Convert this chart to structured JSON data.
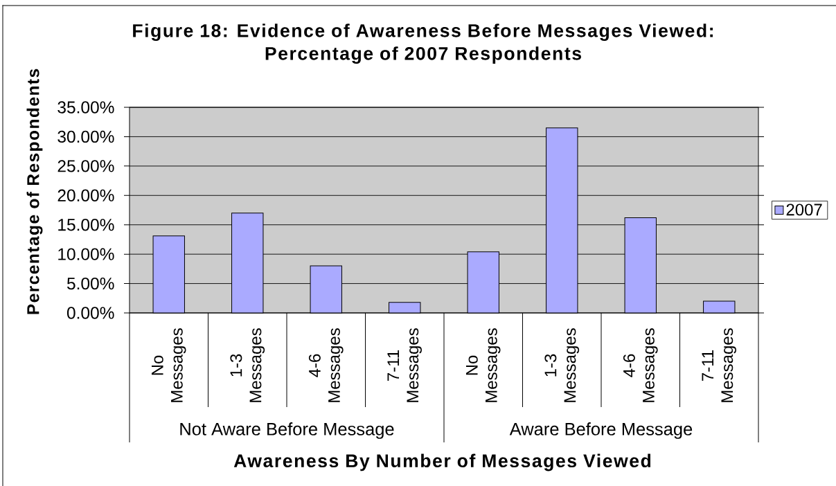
{
  "chart_data": {
    "type": "bar",
    "title": "Figure 18: Evidence of Awareness Before Messages Viewed: Percentage of 2007 Respondents",
    "xlabel": "Awareness By Number of Messages Viewed",
    "ylabel": "Percentage of Respondents",
    "categories": [
      "No Messages",
      "1-3 Messages",
      "4-6 Messages",
      "7-11 Messages",
      "No Messages",
      "1-3 Messages",
      "4-6 Messages",
      "7-11 Messages"
    ],
    "series": [
      {
        "name": "2007",
        "color": "#aaaaff",
        "values": [
          13.1,
          17.0,
          8.0,
          1.8,
          10.4,
          31.5,
          16.2,
          2.0
        ]
      }
    ],
    "ylim": [
      0,
      35
    ],
    "yticks": [
      {
        "value": 0,
        "label": "0.00%"
      },
      {
        "value": 5,
        "label": "5.00%"
      },
      {
        "value": 10,
        "label": "10.00%"
      },
      {
        "value": 15,
        "label": "15.00%"
      },
      {
        "value": 20,
        "label": "20.00%"
      },
      {
        "value": 25,
        "label": "25.00%"
      },
      {
        "value": 30,
        "label": "30.00%"
      },
      {
        "value": 35,
        "label": "35.00%"
      }
    ],
    "grid": "y",
    "legend": "right",
    "annotations": [
      "Not Aware Before Message",
      "Aware Before Message"
    ]
  }
}
